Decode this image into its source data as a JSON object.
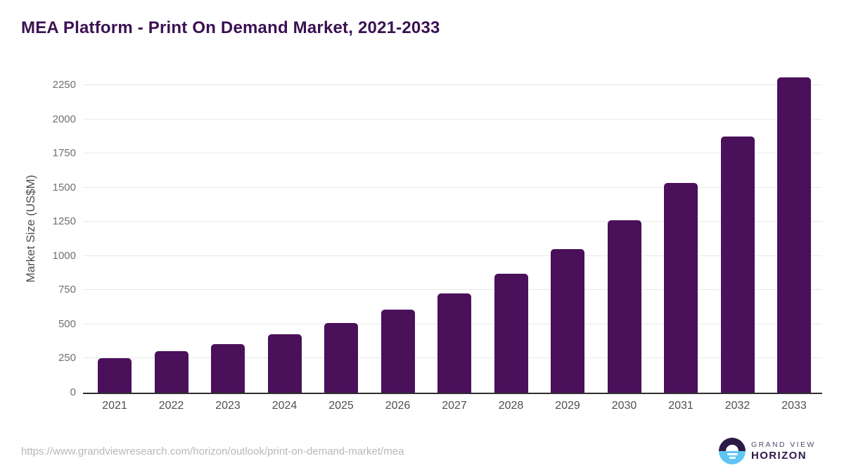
{
  "title": "MEA Platform - Print On Demand Market, 2021-2033",
  "source_url": "https://www.grandviewresearch.com/horizon/outlook/print-on-demand-market/mea",
  "logo": {
    "line1": "GRAND VIEW",
    "line2": "HORIZON"
  },
  "colors": {
    "bar": "#4a105a",
    "title_text": "#3a1152",
    "gridline": "#e8e8e8",
    "axis_line": "#2f2f2f",
    "y_tick_text": "#707070",
    "x_tick_text": "#4f4f4f",
    "axis_title_text": "#4f4f4f",
    "source_text": "#b8b8b8",
    "logo_dark_purple": "#2d1a47",
    "logo_light_blue": "#5fc6f3",
    "logo_subtext": "#514a6b"
  },
  "chart_data": {
    "type": "bar",
    "title": "MEA Platform - Print On Demand Market, 2021-2033",
    "xlabel": "",
    "ylabel": "Market Size (US$M)",
    "categories": [
      "2021",
      "2022",
      "2023",
      "2024",
      "2025",
      "2026",
      "2027",
      "2028",
      "2029",
      "2030",
      "2031",
      "2032",
      "2033"
    ],
    "values": [
      255,
      302,
      358,
      426,
      508,
      610,
      724,
      870,
      1050,
      1263,
      1537,
      1876,
      2305
    ],
    "yticks": [
      0,
      250,
      500,
      750,
      1000,
      1250,
      1500,
      1750,
      2000,
      2250
    ],
    "ylim": [
      0,
      2400
    ],
    "grid": "horizontal-only",
    "legend": "none",
    "bar_color": "#4a105a",
    "bar_corner_radius": "rounded-top"
  }
}
